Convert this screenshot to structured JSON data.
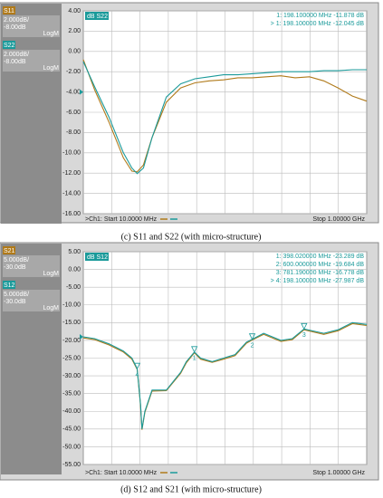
{
  "chart_data": [
    {
      "type": "line",
      "title": "dB S22",
      "readouts": [
        "1:   198.100000 MHz   -11.878 dB",
        "> 1:   198.100000 MHz   -12.045 dB"
      ],
      "start_label": ">Ch1: Start  10.0000 MHz",
      "stop_label": "Stop  1.00000 GHz",
      "caption": "(c) S11 and S22 (with micro-structure)",
      "x": [
        10,
        50,
        100,
        150,
        180,
        198.1,
        220,
        250,
        300,
        350,
        400,
        450,
        500,
        550,
        600,
        650,
        700,
        750,
        800,
        850,
        900,
        950,
        1000
      ],
      "xlim": [
        10,
        1000
      ],
      "series": [
        {
          "name": "S11",
          "color": "#b07a1a",
          "scale": "2.000dB/",
          "ref": "-8.00dB",
          "format": "LogM",
          "values": [
            -0.8,
            -3.8,
            -7,
            -10.5,
            -11.8,
            -11.878,
            -11.2,
            -8.5,
            -5,
            -3.6,
            -3.1,
            -2.9,
            -2.8,
            -2.6,
            -2.6,
            -2.5,
            -2.4,
            -2.6,
            -2.5,
            -2.9,
            -3.6,
            -4.4,
            -4.9
          ]
        },
        {
          "name": "S22",
          "color": "#1a9a9a",
          "scale": "2.000dB/",
          "ref": "-8.00dB",
          "format": "LogM",
          "values": [
            -1,
            -3.5,
            -6.5,
            -10,
            -11.5,
            -12.045,
            -11.5,
            -8.5,
            -4.5,
            -3.2,
            -2.7,
            -2.5,
            -2.3,
            -2.3,
            -2.2,
            -2.1,
            -2.0,
            -2.0,
            -2.0,
            -1.9,
            -1.9,
            -1.8,
            -1.8
          ]
        }
      ],
      "ylim": [
        -16,
        4
      ],
      "yticks": [
        {
          "value": 4,
          "label": "4.00"
        },
        {
          "value": 2,
          "label": "2.00"
        },
        {
          "value": 0,
          "label": "0.00"
        },
        {
          "value": -2,
          "label": "-2.00"
        },
        {
          "value": -4,
          "label": "-4.00"
        },
        {
          "value": -6,
          "label": "-6.00"
        },
        {
          "value": -8,
          "label": "-8.00"
        },
        {
          "value": -10,
          "label": "-10.00"
        },
        {
          "value": -12,
          "label": "-12.00"
        },
        {
          "value": -14,
          "label": "-14.00"
        },
        {
          "value": -16,
          "label": "-16.00"
        }
      ],
      "xgrid_divisions": 10,
      "grid": true
    },
    {
      "type": "line",
      "title": "dB S12",
      "readouts": [
        "1:   398.020000 MHz   -23.289 dB",
        "2:   600.000000 MHz   -19.684 dB",
        "3:   781.190000 MHz   -16.778 dB",
        "> 4:   198.100000 MHz   -27.987 dB"
      ],
      "start_label": ">Ch1: Start  10.0000 MHz",
      "stop_label": "Stop  1.00000 GHz",
      "caption": "(d) S12 and S21 (with micro-structure)",
      "x": [
        10,
        50,
        100,
        150,
        180,
        198.1,
        210,
        215,
        225,
        250,
        300,
        350,
        370,
        398.02,
        420,
        460,
        500,
        540,
        580,
        600,
        640,
        700,
        740,
        781.19,
        850,
        900,
        950,
        1000
      ],
      "xlim": [
        10,
        1000
      ],
      "series": [
        {
          "name": "S21",
          "color": "#b07a1a",
          "scale": "5.000dB/",
          "ref": "-30.0dB",
          "format": "LogM",
          "values": [
            -19.3,
            -19.8,
            -21.3,
            -23.3,
            -25.3,
            -28.2,
            -38.3,
            -45.2,
            -40.3,
            -34.3,
            -34.2,
            -29.3,
            -26.3,
            -23.5,
            -25.3,
            -26.2,
            -25.3,
            -24.3,
            -20.8,
            -19.9,
            -18.3,
            -20.3,
            -19.8,
            -17,
            -18.3,
            -17.3,
            -15.3,
            -15.8
          ]
        },
        {
          "name": "S12",
          "color": "#1a9a9a",
          "scale": "5.000dB/",
          "ref": "-30.0dB",
          "format": "LogM",
          "values": [
            -19,
            -19.5,
            -21,
            -23,
            -25,
            -27.987,
            -38,
            -45,
            -40,
            -34,
            -34,
            -29,
            -26,
            -23.289,
            -25,
            -26,
            -25,
            -24,
            -20.5,
            -19.684,
            -18,
            -20,
            -19.5,
            -16.778,
            -18,
            -17,
            -15,
            -15.5
          ]
        }
      ],
      "markers": [
        {
          "label": "1",
          "x": 398.02,
          "y": -23.289
        },
        {
          "label": "2",
          "x": 600,
          "y": -19.684
        },
        {
          "label": "3",
          "x": 781.19,
          "y": -16.778
        },
        {
          "label": "4",
          "x": 198.1,
          "y": -27.987
        }
      ],
      "ylim": [
        -55,
        5
      ],
      "yticks": [
        {
          "value": 5,
          "label": "5.00"
        },
        {
          "value": 0,
          "label": "0.00"
        },
        {
          "value": -5,
          "label": "-5.00"
        },
        {
          "value": -10,
          "label": "-10.00"
        },
        {
          "value": -15,
          "label": "-15.00"
        },
        {
          "value": -20,
          "label": "-20.00"
        },
        {
          "value": -25,
          "label": "-25.00"
        },
        {
          "value": -30,
          "label": "-30.00"
        },
        {
          "value": -35,
          "label": "-35.00"
        },
        {
          "value": -40,
          "label": "-40.00"
        },
        {
          "value": -45,
          "label": "-45.00"
        },
        {
          "value": -50,
          "label": "-50.00"
        },
        {
          "value": -55,
          "label": "-55.00"
        }
      ],
      "xgrid_divisions": 10,
      "grid": true
    }
  ]
}
